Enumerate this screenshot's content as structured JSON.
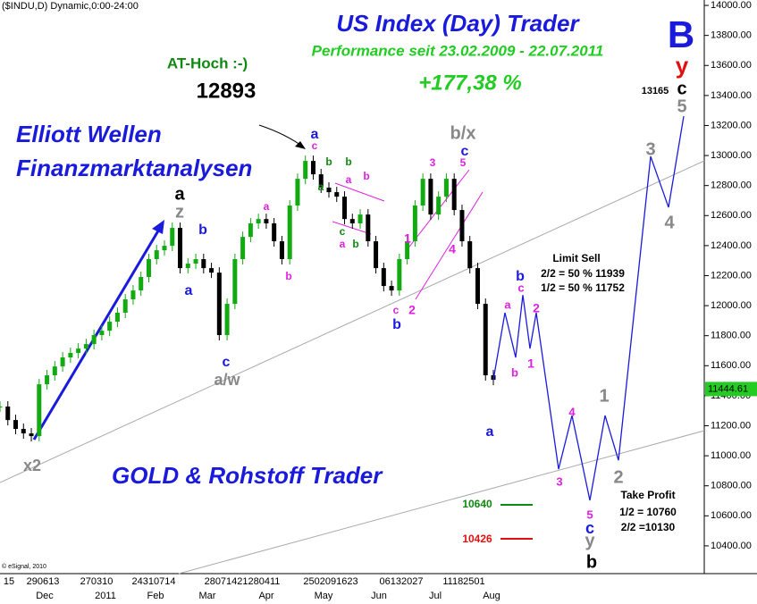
{
  "header": "($INDU,D) Dynamic,0:00-24:00",
  "chart_data": {
    "type": "candlestick",
    "title": "US Index (Day) Trader",
    "subtitle": "Performance seit 23.02.2009 - 22.07.2011",
    "performance": "+177,38 %",
    "ylim": [
      10215,
      14036
    ],
    "yticks": [
      {
        "value": 10400,
        "label": "10400.00"
      },
      {
        "value": 10600,
        "label": "10600.00"
      },
      {
        "value": 10800,
        "label": "10800.00"
      },
      {
        "value": 11000,
        "label": "11000.00"
      },
      {
        "value": 11200,
        "label": "11200.00"
      },
      {
        "value": 11400,
        "label": "11400.00"
      },
      {
        "value": 11600,
        "label": "11600.00"
      },
      {
        "value": 11800,
        "label": "11800.00"
      },
      {
        "value": 12000,
        "label": "12000.00"
      },
      {
        "value": 12200,
        "label": "12200.00"
      },
      {
        "value": 12400,
        "label": "12400.00"
      },
      {
        "value": 12600,
        "label": "12600.00"
      },
      {
        "value": 12800,
        "label": "12800.00"
      },
      {
        "value": 13000,
        "label": "13000.00"
      },
      {
        "value": 13200,
        "label": "13200.00"
      },
      {
        "value": 13400,
        "label": "13400.00"
      },
      {
        "value": 13600,
        "label": "13600.00"
      },
      {
        "value": 13800,
        "label": "13800.00"
      },
      {
        "value": 14000,
        "label": "14000.00"
      }
    ],
    "day_labels": [
      "15",
      "290613",
      "270310",
      "24310714",
      "28071421280411",
      "2502091623",
      "06132027",
      "11182501"
    ],
    "month_labels": [
      "Dec",
      "2011",
      "Feb",
      "Mar",
      "Apr",
      "May",
      "Jun",
      "Jul",
      "Aug"
    ],
    "values": [
      11328,
      11238,
      11179,
      11149,
      11131,
      11476,
      11536,
      11595,
      11655,
      11685,
      11714,
      11744,
      11804,
      11833,
      11893,
      11953,
      12042,
      12101,
      12191,
      12310,
      12369,
      12399,
      12518,
      12250,
      12280,
      12310,
      12250,
      12220,
      11804,
      12012,
      12310,
      12458,
      12548,
      12577,
      12548,
      12429,
      12310,
      12667,
      12845,
      12964,
      12875,
      12786,
      12756,
      12726,
      12577,
      12548,
      12607,
      12429,
      12250,
      12131,
      12101,
      12310,
      12429,
      12667,
      12845,
      12607,
      12726,
      12845,
      12637,
      12429,
      12250,
      12012,
      11536,
      11506
    ],
    "projection": [
      11953,
      11655,
      12071,
      11714,
      11953,
      10911,
      11268,
      10703,
      11268,
      10970,
      12994,
      12655,
      13262
    ],
    "last_price": 11444.61,
    "wave_labels": [
      "a",
      "z",
      "b",
      "a",
      "c",
      "a/w",
      "x2",
      "a",
      "c",
      "b",
      "a",
      "b",
      "a",
      "b",
      "c",
      "a",
      "b",
      "a",
      "b",
      "b/x",
      "3",
      "5",
      "c",
      "1",
      "4",
      "2",
      "c",
      "b",
      "a",
      "b",
      "c",
      "a",
      "2",
      "b",
      "1",
      "3",
      "4",
      "5",
      "c",
      "y",
      "b",
      "1",
      "2",
      "3",
      "4",
      "5",
      "c",
      "y",
      "B",
      "13165"
    ],
    "texts": {
      "elliott": "Elliott Wellen",
      "finanz": "Finanzmarktanalysen",
      "gold": "GOLD & Rohstoff Trader",
      "at_hoch": "AT-Hoch :-)",
      "high": "12893",
      "copyright": "© eSignal, 2010"
    },
    "orders": {
      "limit_sell": "Limit Sell",
      "ls_2": "2/2 = 50 % 11939",
      "ls_1": "1/2 = 50 % 11752",
      "stop_green": "10640",
      "stop_red": "10426",
      "take_profit": "Take Profit",
      "tp_1": "1/2 = 10760",
      "tp_2": "2/2 =10130"
    }
  }
}
